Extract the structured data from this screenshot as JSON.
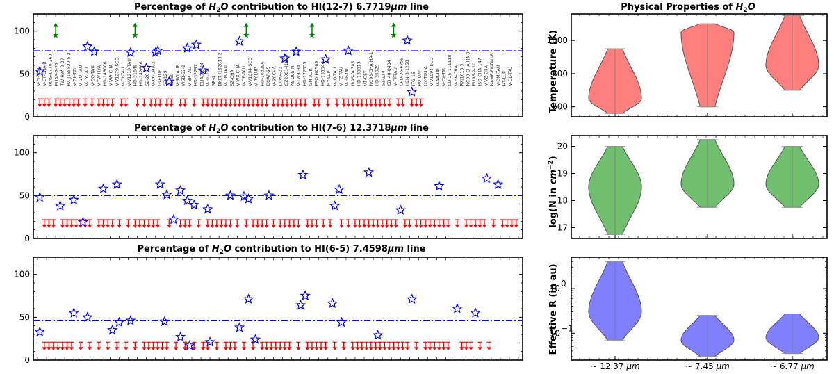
{
  "colors": {
    "star": "#0000ff",
    "limit": "#ff0000",
    "meanline": "#0000ff",
    "upper": "#008000",
    "violin_temp": "#ff7f7f",
    "violin_col": "#6fbf6f",
    "violin_reff": "#8080ff"
  },
  "chart_data": [
    {
      "type": "scatter",
      "panel": "left-top",
      "title_prefix": "Percentage of ",
      "title_italic": "H",
      "title_sub": "2",
      "title_italic2": "O",
      "title_mid": " contribution to HI(12-7) 6.7719",
      "title_mu": "μm",
      "title_suffix": " line",
      "ylim": [
        0,
        120
      ],
      "yticks": [
        "0",
        "50",
        "100"
      ],
      "n_sources": 66,
      "mean_line": 77,
      "detections": [
        {
          "x": 1,
          "y": 53
        },
        {
          "x": 22,
          "y": 82
        },
        {
          "x": 25,
          "y": 76
        },
        {
          "x": 41,
          "y": 75
        },
        {
          "x": 48,
          "y": 57
        },
        {
          "x": 52,
          "y": 75
        },
        {
          "x": 53,
          "y": 77
        },
        {
          "x": 58,
          "y": 41
        },
        {
          "x": 66,
          "y": 80
        },
        {
          "x": 70,
          "y": 84
        },
        {
          "x": 73,
          "y": 54
        },
        {
          "x": 89,
          "y": 88
        },
        {
          "x": 109,
          "y": 68
        },
        {
          "x": 114,
          "y": 76
        },
        {
          "x": 127,
          "y": 67
        },
        {
          "x": 137,
          "y": 77
        },
        {
          "x": 163,
          "y": 89
        },
        {
          "x": 165,
          "y": 29
        }
      ],
      "upper_limits_up": [
        {
          "x": 8,
          "y": 100
        },
        {
          "x": 43,
          "y": 100
        },
        {
          "x": 92,
          "y": 100
        },
        {
          "x": 121,
          "y": 100
        },
        {
          "x": 157,
          "y": 100
        }
      ],
      "lower_limit_x": [
        1,
        3,
        5,
        8,
        10,
        12,
        14,
        16,
        18,
        21,
        24,
        27,
        29,
        31,
        33,
        37,
        39,
        44,
        47,
        50,
        52,
        54,
        57,
        59,
        63,
        65,
        69,
        73,
        75,
        77,
        79,
        81,
        83,
        85,
        87,
        89,
        91,
        93,
        95,
        97,
        99,
        101,
        104,
        106,
        108,
        110,
        112,
        114,
        116,
        118,
        122,
        124,
        128,
        132,
        135,
        137,
        139,
        141,
        143,
        145,
        147,
        149,
        151,
        153,
        155,
        159,
        161,
        165,
        167,
        169
      ],
      "source_names": [
        "V-CI-TAU",
        "V-CT-CHA-B",
        "IRAS-1778-260",
        "ELIAS-2-27",
        "TW-HYA-2-27",
        "RX-J155829.5-2",
        "V-GK-TAU",
        "V-GO-TAU",
        "V-CY-TAU",
        "V-DG-TAU",
        "V-TW-HYA",
        "HD-143006",
        "V-VW-CHA",
        "V-V1279-SCO",
        "V-CY-TAU",
        "V-V1213-TAU",
        "HD-31648",
        "HD-142666",
        "SZ-28",
        "V-XX-CHA-2",
        "GQ-LUP",
        "SZ-129",
        "SZ-50",
        "V-RW-AUR",
        "WSB-52-2",
        "V-BP-TAU",
        "HD-32297",
        "ELIAS-2-24",
        "V-HL-TAU",
        "SR-4",
        "BKLT-J162813-2",
        "V-ON-TAU",
        "SZ-CHA",
        "V-WX-CHA",
        "V-DR-TAU",
        "V-V1094-SCO",
        "V-RY-LUP",
        "HD-163296",
        "DOAR-25",
        "V-SY-CHA",
        "DOAR-33",
        "GZ2001-J1603",
        "AS-205-N",
        "V-TW-CHA",
        "HD-172555",
        "GM-AUR",
        "ESO-HA569",
        "HD-135344",
        "MY-LUP",
        "V-IQ-TAU",
        "V-FZ-TAU",
        "V-HP-TAU",
        "IRAS-04385",
        "HD-138813",
        "V1-CET",
        "NC98-CHA-HA-1",
        "HD-35929",
        "SZ-114",
        "CD-40-8434",
        "V-FT-TAU",
        "CPD-36-6759",
        "HEN-3-1258",
        "ITG-15",
        "RU-LUP",
        "UX-TAU-A",
        "V-V1094-SCO",
        "V-AA-TAU",
        "V-CX-TAU",
        "CD-25-111118",
        "V-HK-CHA",
        "RXJ1615.3",
        "NC98-CHA-HA-9",
        "ELIAS-2-20",
        "ISO-CHA-147",
        "V-VZ-CHA",
        "NAME-EK-TAU-B",
        "V-DM-TAU",
        "HT-LUP",
        "V-DL-TAU"
      ]
    },
    {
      "type": "scatter",
      "panel": "left-middle",
      "title_prefix": "Percentage of ",
      "title_italic": "H",
      "title_sub": "2",
      "title_italic2": "O",
      "title_mid": " contribution to HI(7-6) 12.3718",
      "title_mu": "μm",
      "title_suffix": " line",
      "ylim": [
        0,
        120
      ],
      "yticks": [
        "0",
        "50",
        "100"
      ],
      "mean_line": 50,
      "detections": [
        {
          "x": 1,
          "y": 48
        },
        {
          "x": 10,
          "y": 38
        },
        {
          "x": 16,
          "y": 45
        },
        {
          "x": 20,
          "y": 19
        },
        {
          "x": 29,
          "y": 58
        },
        {
          "x": 35,
          "y": 63
        },
        {
          "x": 54,
          "y": 63
        },
        {
          "x": 57,
          "y": 51
        },
        {
          "x": 60,
          "y": 22
        },
        {
          "x": 63,
          "y": 56
        },
        {
          "x": 66,
          "y": 44
        },
        {
          "x": 69,
          "y": 39
        },
        {
          "x": 75,
          "y": 34
        },
        {
          "x": 85,
          "y": 50
        },
        {
          "x": 91,
          "y": 49
        },
        {
          "x": 93,
          "y": 46
        },
        {
          "x": 102,
          "y": 50
        },
        {
          "x": 117,
          "y": 74
        },
        {
          "x": 131,
          "y": 38
        },
        {
          "x": 133,
          "y": 57
        },
        {
          "x": 146,
          "y": 77
        },
        {
          "x": 160,
          "y": 33
        },
        {
          "x": 177,
          "y": 61
        },
        {
          "x": 198,
          "y": 70
        },
        {
          "x": 203,
          "y": 63
        }
      ],
      "lower_limit_x": [
        3,
        5,
        7,
        11,
        13,
        15,
        17,
        19,
        21,
        23,
        27,
        29,
        31,
        33,
        36,
        40,
        43,
        45,
        47,
        49,
        51,
        53,
        58,
        63,
        65,
        67,
        71,
        75,
        77,
        79,
        81,
        83,
        85,
        88,
        92,
        95,
        97,
        99,
        101,
        104,
        107,
        109,
        111,
        113,
        115,
        119,
        121,
        123,
        126,
        129,
        134,
        137,
        140,
        142,
        144,
        146,
        148,
        150,
        152,
        154,
        156,
        158,
        162,
        164,
        167,
        169,
        171,
        173,
        175,
        177,
        179,
        181,
        185,
        189,
        191,
        193,
        195,
        197,
        201,
        205,
        207,
        209,
        211
      ],
      "lower_limit_y": 17
    },
    {
      "type": "scatter",
      "panel": "left-bottom",
      "title_prefix": "Percentage of ",
      "title_italic": "H",
      "title_sub": "2",
      "title_italic2": "O",
      "title_mid": " contribution to HI(6-5) 7.4598",
      "title_mu": "μm",
      "title_suffix": " line",
      "ylim": [
        0,
        120
      ],
      "yticks": [
        "0",
        "50",
        "100"
      ],
      "mean_line": 46,
      "detections": [
        {
          "x": 1,
          "y": 33
        },
        {
          "x": 16,
          "y": 55
        },
        {
          "x": 22,
          "y": 50
        },
        {
          "x": 33,
          "y": 35
        },
        {
          "x": 36,
          "y": 44
        },
        {
          "x": 41,
          "y": 46
        },
        {
          "x": 56,
          "y": 45
        },
        {
          "x": 63,
          "y": 27
        },
        {
          "x": 67,
          "y": 17
        },
        {
          "x": 76,
          "y": 21
        },
        {
          "x": 89,
          "y": 38
        },
        {
          "x": 93,
          "y": 71
        },
        {
          "x": 96,
          "y": 24
        },
        {
          "x": 116,
          "y": 64
        },
        {
          "x": 118,
          "y": 75
        },
        {
          "x": 130,
          "y": 66
        },
        {
          "x": 134,
          "y": 44
        },
        {
          "x": 150,
          "y": 29
        },
        {
          "x": 165,
          "y": 71
        },
        {
          "x": 185,
          "y": 60
        },
        {
          "x": 193,
          "y": 55
        }
      ],
      "lower_limit_x": [
        3,
        5,
        7,
        9,
        11,
        13,
        15,
        19,
        23,
        27,
        31,
        35,
        39,
        43,
        47,
        49,
        51,
        53,
        55,
        57,
        61,
        65,
        69,
        73,
        75,
        79,
        83,
        85,
        87,
        91,
        95,
        99,
        101,
        103,
        105,
        107,
        109,
        111,
        115,
        119,
        121,
        123,
        125,
        127,
        131,
        135,
        139,
        141,
        143,
        145,
        147,
        149,
        151,
        153,
        155,
        157,
        159,
        161,
        163,
        167,
        171,
        173,
        175,
        177,
        179,
        181,
        187,
        189,
        191,
        195,
        199
      ],
      "lower_limit_y": 16
    },
    {
      "type": "violin",
      "panel": "right-top",
      "title_prefix": "Physical Properties of ",
      "title_italic": "H",
      "title_sub": "2",
      "title_italic2": "O",
      "ylabel": "Temperature (K)",
      "ylim": [
        540,
        1160
      ],
      "yticks": [
        "600",
        "800",
        "1000"
      ],
      "violins": [
        {
          "position": "~ 12.37 μm",
          "min": 560,
          "max": 950,
          "mode": 650
        },
        {
          "position": "~ 7.45 μm",
          "min": 600,
          "max": 1100,
          "mode": 1050
        },
        {
          "position": "~ 6.77 μm",
          "min": 700,
          "max": 1150,
          "mode": 850
        }
      ]
    },
    {
      "type": "violin",
      "panel": "right-middle",
      "ylabel_prefix": "log(N in ",
      "ylabel_unit": "cm",
      "ylabel_exp": "−2",
      "ylabel_suffix": ")",
      "ylim": [
        16.6,
        20.4
      ],
      "yticks": [
        "17",
        "18",
        "19",
        "20"
      ],
      "violins": [
        {
          "position": "~ 12.37 μm",
          "min": 16.75,
          "max": 20.0,
          "mode": 18.5
        },
        {
          "position": "~ 7.45 μm",
          "min": 17.75,
          "max": 20.25,
          "mode": 18.6
        },
        {
          "position": "~ 6.77 μm",
          "min": 17.75,
          "max": 20.0,
          "mode": 18.6
        }
      ]
    },
    {
      "type": "violin",
      "panel": "right-bottom",
      "ylabel": "Effective R (in au)",
      "yscale": "log",
      "ylim": [
        0.025,
        5
      ],
      "yticks": [
        "10",
        "10"
      ],
      "ytick_exps": [
        "0",
        "−1"
      ],
      "violins": [
        {
          "position": "~ 12.37 μm",
          "min": 0.07,
          "max": 4.0,
          "mode": 0.3
        },
        {
          "position": "~ 7.45 μm",
          "min": 0.03,
          "max": 0.25,
          "mode": 0.07
        },
        {
          "position": "~ 6.77 μm",
          "min": 0.035,
          "max": 0.27,
          "mode": 0.08
        }
      ],
      "xtick_labels": [
        {
          "tilde": "~ ",
          "num": "12.37 ",
          "mu": "μm"
        },
        {
          "tilde": "~ ",
          "num": "7.45 ",
          "mu": "μm"
        },
        {
          "tilde": "~ ",
          "num": "6.77 ",
          "mu": "μm"
        }
      ]
    }
  ]
}
